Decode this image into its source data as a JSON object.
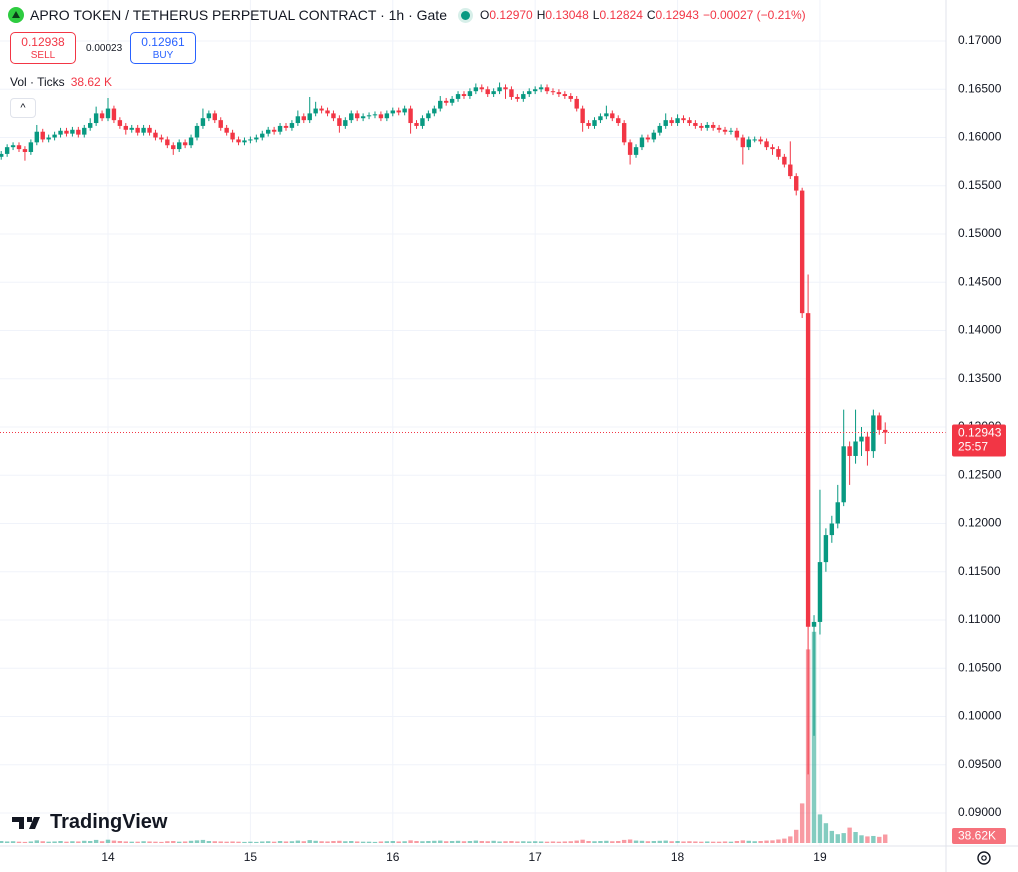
{
  "header": {
    "title": "APRO TOKEN / TETHERUS PERPETUAL CONTRACT · 1h · Gate",
    "ohlc": [
      {
        "label": "O",
        "value": "0.12970"
      },
      {
        "label": "H",
        "value": "0.13048"
      },
      {
        "label": "L",
        "value": "0.12824"
      },
      {
        "label": "C",
        "value": "0.12943"
      }
    ],
    "change": "−0.00027 (−0.21%)",
    "sell": {
      "price": "0.12938",
      "label": "SELL"
    },
    "spread": "0.00023",
    "buy": {
      "price": "0.12961",
      "label": "BUY"
    },
    "volume_title": "Vol · Ticks",
    "volume_value": "38.62 K",
    "watermark": "TradingView"
  },
  "chart_data": {
    "type": "candlestick",
    "up_color": "#089981",
    "down_color": "#f23645",
    "grid": true,
    "price_badge": "0.12943",
    "countdown": "25:57",
    "volume_badge": "38.62K",
    "categories": [
      null,
      null,
      null,
      null,
      null,
      null,
      null,
      null,
      null,
      null,
      null,
      null,
      null,
      null,
      null,
      null,
      null,
      null,
      "14",
      null,
      null,
      null,
      null,
      null,
      null,
      null,
      null,
      null,
      null,
      null,
      null,
      null,
      null,
      null,
      null,
      null,
      null,
      null,
      null,
      null,
      null,
      null,
      "15",
      null,
      null,
      null,
      null,
      null,
      null,
      null,
      null,
      null,
      null,
      null,
      null,
      null,
      null,
      null,
      null,
      null,
      null,
      null,
      null,
      null,
      null,
      null,
      "16",
      null,
      null,
      null,
      null,
      null,
      null,
      null,
      null,
      null,
      null,
      null,
      null,
      null,
      null,
      null,
      null,
      null,
      null,
      null,
      null,
      null,
      null,
      null,
      "17",
      null,
      null,
      null,
      null,
      null,
      null,
      null,
      null,
      null,
      null,
      null,
      null,
      null,
      null,
      null,
      null,
      null,
      null,
      null,
      null,
      null,
      null,
      null,
      "18",
      null,
      null,
      null,
      null,
      null,
      null,
      null,
      null,
      null,
      null,
      null,
      null,
      null,
      null,
      null,
      null,
      null,
      null,
      null,
      null,
      null,
      null,
      null,
      "19",
      null,
      null,
      null,
      null,
      null,
      null,
      null,
      null,
      null,
      null,
      null
    ],
    "open": [
      0.158,
      0.1583,
      0.159,
      0.1592,
      0.1588,
      0.1585,
      0.1595,
      0.1606,
      0.1598,
      0.16,
      0.1603,
      0.1607,
      0.1604,
      0.1608,
      0.1603,
      0.161,
      0.1615,
      0.1625,
      0.162,
      0.163,
      0.1618,
      0.1612,
      0.1608,
      0.161,
      0.1605,
      0.161,
      0.1605,
      0.16,
      0.1598,
      0.1592,
      0.1588,
      0.1595,
      0.1592,
      0.16,
      0.1612,
      0.162,
      0.1625,
      0.1618,
      0.161,
      0.1605,
      0.1598,
      0.1595,
      0.1597,
      0.1598,
      0.16,
      0.1604,
      0.1608,
      0.1606,
      0.1612,
      0.161,
      0.1615,
      0.1622,
      0.1618,
      0.1625,
      0.163,
      0.1628,
      0.1625,
      0.162,
      0.1612,
      0.1618,
      0.1625,
      0.162,
      0.1622,
      0.1623,
      0.1624,
      0.162,
      0.1625,
      0.1628,
      0.1626,
      0.163,
      0.1615,
      0.1612,
      0.162,
      0.1625,
      0.163,
      0.1638,
      0.1636,
      0.164,
      0.1645,
      0.1643,
      0.1648,
      0.1652,
      0.165,
      0.1645,
      0.1648,
      0.1652,
      0.165,
      0.1642,
      0.164,
      0.1645,
      0.1648,
      0.165,
      0.1652,
      0.1648,
      0.1647,
      0.1645,
      0.1643,
      0.164,
      0.163,
      0.1615,
      0.1612,
      0.1618,
      0.1622,
      0.1625,
      0.162,
      0.1615,
      0.1595,
      0.1582,
      0.159,
      0.16,
      0.1598,
      0.1605,
      0.1612,
      0.1618,
      0.1615,
      0.162,
      0.1618,
      0.1615,
      0.1612,
      0.161,
      0.1613,
      0.161,
      0.1608,
      0.1606,
      0.1607,
      0.16,
      0.159,
      0.1598,
      0.1598,
      0.1596,
      0.159,
      0.1588,
      0.158,
      0.1572,
      0.156,
      0.1545,
      0.1418,
      0.1093,
      0.1098,
      0.116,
      0.1188,
      0.12,
      0.1222,
      0.128,
      0.127,
      0.1285,
      0.129,
      0.1275,
      0.1312,
      0.1297
    ],
    "high": [
      0.1586,
      0.1593,
      0.1595,
      0.1595,
      0.1591,
      0.1598,
      0.1613,
      0.1609,
      0.1603,
      0.1606,
      0.161,
      0.161,
      0.1611,
      0.1611,
      0.1613,
      0.162,
      0.1632,
      0.1628,
      0.1641,
      0.1633,
      0.1621,
      0.1615,
      0.1613,
      0.1613,
      0.1613,
      0.1613,
      0.1608,
      0.1603,
      0.1601,
      0.1595,
      0.1598,
      0.1598,
      0.1603,
      0.1615,
      0.163,
      0.1628,
      0.1628,
      0.1621,
      0.1613,
      0.1608,
      0.1601,
      0.16,
      0.1601,
      0.1603,
      0.1607,
      0.1611,
      0.1611,
      0.1615,
      0.1615,
      0.1618,
      0.1628,
      0.1625,
      0.1642,
      0.1637,
      0.1633,
      0.1631,
      0.1628,
      0.1623,
      0.1621,
      0.1628,
      0.1628,
      0.1625,
      0.1626,
      0.1627,
      0.1627,
      0.1628,
      0.1631,
      0.1631,
      0.1633,
      0.1633,
      0.1618,
      0.1623,
      0.1628,
      0.1633,
      0.1643,
      0.1641,
      0.1643,
      0.1648,
      0.1648,
      0.1651,
      0.1656,
      0.1655,
      0.1653,
      0.1651,
      0.1657,
      0.1655,
      0.1653,
      0.1645,
      0.1648,
      0.1651,
      0.1653,
      0.1655,
      0.1655,
      0.1651,
      0.165,
      0.1648,
      0.1646,
      0.1643,
      0.1633,
      0.1618,
      0.1621,
      0.1625,
      0.1633,
      0.1628,
      0.1623,
      0.1618,
      0.1598,
      0.1593,
      0.1603,
      0.1603,
      0.1608,
      0.1615,
      0.1625,
      0.1621,
      0.1624,
      0.1623,
      0.1621,
      0.1618,
      0.1615,
      0.1616,
      0.1616,
      0.1613,
      0.1611,
      0.161,
      0.161,
      0.1603,
      0.1601,
      0.1601,
      0.1601,
      0.1599,
      0.1593,
      0.1591,
      0.1583,
      0.1596,
      0.1563,
      0.1548,
      0.1458,
      0.1105,
      0.1235,
      0.1195,
      0.1208,
      0.124,
      0.1318,
      0.1285,
      0.1318,
      0.13,
      0.1295,
      0.1318,
      0.1315,
      0.13048
    ],
    "low": [
      0.1577,
      0.158,
      0.1587,
      0.1585,
      0.1576,
      0.1582,
      0.1592,
      0.1595,
      0.1595,
      0.1597,
      0.16,
      0.1601,
      0.1601,
      0.16,
      0.16,
      0.1607,
      0.1612,
      0.1617,
      0.1617,
      0.1615,
      0.1609,
      0.1603,
      0.1605,
      0.1602,
      0.1602,
      0.1602,
      0.1597,
      0.1595,
      0.1589,
      0.1582,
      0.1585,
      0.1589,
      0.1589,
      0.1597,
      0.1609,
      0.1617,
      0.1615,
      0.1607,
      0.1602,
      0.1595,
      0.1592,
      0.1592,
      0.1594,
      0.1595,
      0.1597,
      0.1601,
      0.1603,
      0.1603,
      0.1607,
      0.1607,
      0.1612,
      0.1615,
      0.1615,
      0.1622,
      0.1625,
      0.1622,
      0.1617,
      0.1605,
      0.1609,
      0.1615,
      0.1617,
      0.1617,
      0.1619,
      0.162,
      0.1617,
      0.1617,
      0.1622,
      0.1623,
      0.1623,
      0.1604,
      0.1609,
      0.1609,
      0.1617,
      0.1622,
      0.1627,
      0.1633,
      0.1633,
      0.1637,
      0.164,
      0.164,
      0.1645,
      0.1647,
      0.1642,
      0.1642,
      0.1645,
      0.164,
      0.1639,
      0.1637,
      0.1637,
      0.1642,
      0.1645,
      0.1647,
      0.1645,
      0.1644,
      0.1642,
      0.164,
      0.1637,
      0.1627,
      0.1606,
      0.1609,
      0.1609,
      0.1615,
      0.1619,
      0.1617,
      0.1612,
      0.1592,
      0.1572,
      0.1579,
      0.1587,
      0.1595,
      0.1595,
      0.1602,
      0.1609,
      0.1612,
      0.1612,
      0.1615,
      0.1612,
      0.1609,
      0.1607,
      0.1607,
      0.1607,
      0.1605,
      0.1603,
      0.1603,
      0.1597,
      0.1572,
      0.1587,
      0.1595,
      0.1593,
      0.1587,
      0.1582,
      0.1577,
      0.1569,
      0.1557,
      0.154,
      0.1413,
      0.094,
      0.098,
      0.1085,
      0.115,
      0.118,
      0.1195,
      0.1218,
      0.124,
      0.1262,
      0.127,
      0.126,
      0.1268,
      0.1292,
      0.12824
    ],
    "close": [
      0.1583,
      0.159,
      0.1592,
      0.1588,
      0.1585,
      0.1595,
      0.1606,
      0.1598,
      0.16,
      0.1603,
      0.1607,
      0.1604,
      0.1608,
      0.1603,
      0.161,
      0.1615,
      0.1625,
      0.162,
      0.163,
      0.1618,
      0.1612,
      0.1608,
      0.161,
      0.1605,
      0.161,
      0.1605,
      0.16,
      0.1598,
      0.1592,
      0.1588,
      0.1595,
      0.1592,
      0.16,
      0.1612,
      0.162,
      0.1625,
      0.1618,
      0.161,
      0.1605,
      0.1598,
      0.1595,
      0.1597,
      0.1598,
      0.16,
      0.1604,
      0.1608,
      0.1606,
      0.1612,
      0.161,
      0.1615,
      0.1622,
      0.1618,
      0.1625,
      0.163,
      0.1628,
      0.1625,
      0.162,
      0.1612,
      0.1618,
      0.1625,
      0.162,
      0.1622,
      0.1623,
      0.1624,
      0.162,
      0.1625,
      0.1628,
      0.1626,
      0.163,
      0.1615,
      0.1612,
      0.162,
      0.1625,
      0.163,
      0.1638,
      0.1636,
      0.164,
      0.1645,
      0.1643,
      0.1648,
      0.1652,
      0.165,
      0.1645,
      0.1648,
      0.1652,
      0.165,
      0.1642,
      0.164,
      0.1645,
      0.1648,
      0.165,
      0.1652,
      0.1648,
      0.1647,
      0.1645,
      0.1643,
      0.164,
      0.163,
      0.1615,
      0.1612,
      0.1618,
      0.1622,
      0.1625,
      0.162,
      0.1615,
      0.1595,
      0.1582,
      0.159,
      0.16,
      0.1598,
      0.1605,
      0.1612,
      0.1618,
      0.1615,
      0.162,
      0.1618,
      0.1615,
      0.1612,
      0.161,
      0.1613,
      0.161,
      0.1608,
      0.1606,
      0.1607,
      0.16,
      0.159,
      0.1598,
      0.1598,
      0.1596,
      0.159,
      0.1588,
      0.158,
      0.1572,
      0.156,
      0.1545,
      0.1418,
      0.1093,
      0.1098,
      0.116,
      0.1188,
      0.12,
      0.1222,
      0.128,
      0.127,
      0.1285,
      0.129,
      0.1275,
      0.1312,
      0.1297,
      0.12943
    ],
    "volume": [
      9000,
      7000,
      8000,
      6000,
      5000,
      7000,
      12000,
      8000,
      6000,
      7000,
      9000,
      6000,
      8000,
      7000,
      10000,
      9000,
      14000,
      8000,
      15000,
      11000,
      9000,
      7000,
      6000,
      6000,
      8000,
      7000,
      6000,
      5000,
      8000,
      9000,
      6000,
      7000,
      10000,
      12000,
      14000,
      9000,
      8000,
      7000,
      6000,
      7000,
      6000,
      5000,
      6000,
      5000,
      7000,
      8000,
      6000,
      9000,
      7000,
      8000,
      11000,
      8000,
      13000,
      10000,
      8000,
      7000,
      9000,
      10000,
      8000,
      9000,
      7000,
      6000,
      6000,
      5000,
      7000,
      8000,
      9000,
      7000,
      8000,
      12000,
      9000,
      8000,
      9000,
      10000,
      11000,
      8000,
      9000,
      10000,
      8000,
      9000,
      11000,
      9000,
      8000,
      10000,
      7000,
      8000,
      9000,
      7000,
      8000,
      7000,
      8000,
      7000,
      6000,
      7000,
      6000,
      7000,
      8000,
      11000,
      15000,
      9000,
      8000,
      9000,
      10000,
      8000,
      9000,
      14000,
      16000,
      11000,
      10000,
      8000,
      9000,
      10000,
      11000,
      8000,
      9000,
      7000,
      8000,
      7000,
      6000,
      7000,
      6000,
      6000,
      7000,
      6000,
      9000,
      12000,
      10000,
      8000,
      9000,
      11000,
      12000,
      16000,
      20000,
      30000,
      60000,
      180000,
      880000,
      960000,
      130000,
      90000,
      55000,
      40000,
      45000,
      70000,
      50000,
      35000,
      30000,
      32000,
      28000,
      38620
    ],
    "volume_lim": [
      0,
      1000000
    ],
    "ylim": [
      0.08658,
      0.17425
    ],
    "yticks": [
      {
        "value": 0.09,
        "label": "0.09000"
      },
      {
        "value": 0.095,
        "label": "0.09500"
      },
      {
        "value": 0.1,
        "label": "0.10000"
      },
      {
        "value": 0.105,
        "label": "0.10500"
      },
      {
        "value": 0.11,
        "label": "0.11000"
      },
      {
        "value": 0.115,
        "label": "0.11500"
      },
      {
        "value": 0.12,
        "label": "0.12000"
      },
      {
        "value": 0.125,
        "label": "0.12500"
      },
      {
        "value": 0.13,
        "label": "0.13000"
      },
      {
        "value": 0.135,
        "label": "0.13500"
      },
      {
        "value": 0.14,
        "label": "0.14000"
      },
      {
        "value": 0.145,
        "label": "0.14500"
      },
      {
        "value": 0.15,
        "label": "0.15000"
      },
      {
        "value": 0.155,
        "label": "0.15500"
      },
      {
        "value": 0.16,
        "label": "0.16000"
      },
      {
        "value": 0.165,
        "label": "0.16500"
      },
      {
        "value": 0.17,
        "label": "0.17000"
      }
    ]
  }
}
